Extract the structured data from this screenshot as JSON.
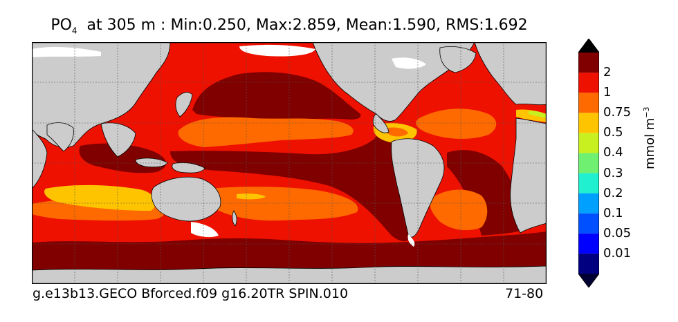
{
  "title": {
    "variable": "PO",
    "subscript": "4",
    "rest": "  at 305 m : Min:0.250, Max:2.859, Mean:1.590, RMS:1.692"
  },
  "footer": {
    "run_name": "g.e13b13.GECO Bforced.f09 g16.20TR SPIN.010",
    "years": "71-80"
  },
  "colorbar": {
    "units_base": "mmol m",
    "units_exp": "−3",
    "labels": [
      "2",
      "1",
      "0.75",
      "0.5",
      "0.4",
      "0.3",
      "0.2",
      "0.1",
      "0.05",
      "0.01"
    ],
    "colors": [
      "#000080",
      "#0000ff",
      "#0050ff",
      "#00a0ff",
      "#20f0d0",
      "#70f070",
      "#c8f020",
      "#ffc400",
      "#ff6a00",
      "#ee1100",
      "#800000"
    ]
  },
  "map_colors": {
    "ocean_base": "#ee1100",
    "land": "#cccccc",
    "ice": "#ffffff",
    "level_2": "#800000",
    "level_1": "#ee1100",
    "level_075": "#ff6a00",
    "level_05": "#ffc400",
    "level_04": "#c8f020",
    "level_03": "#70f070"
  }
}
